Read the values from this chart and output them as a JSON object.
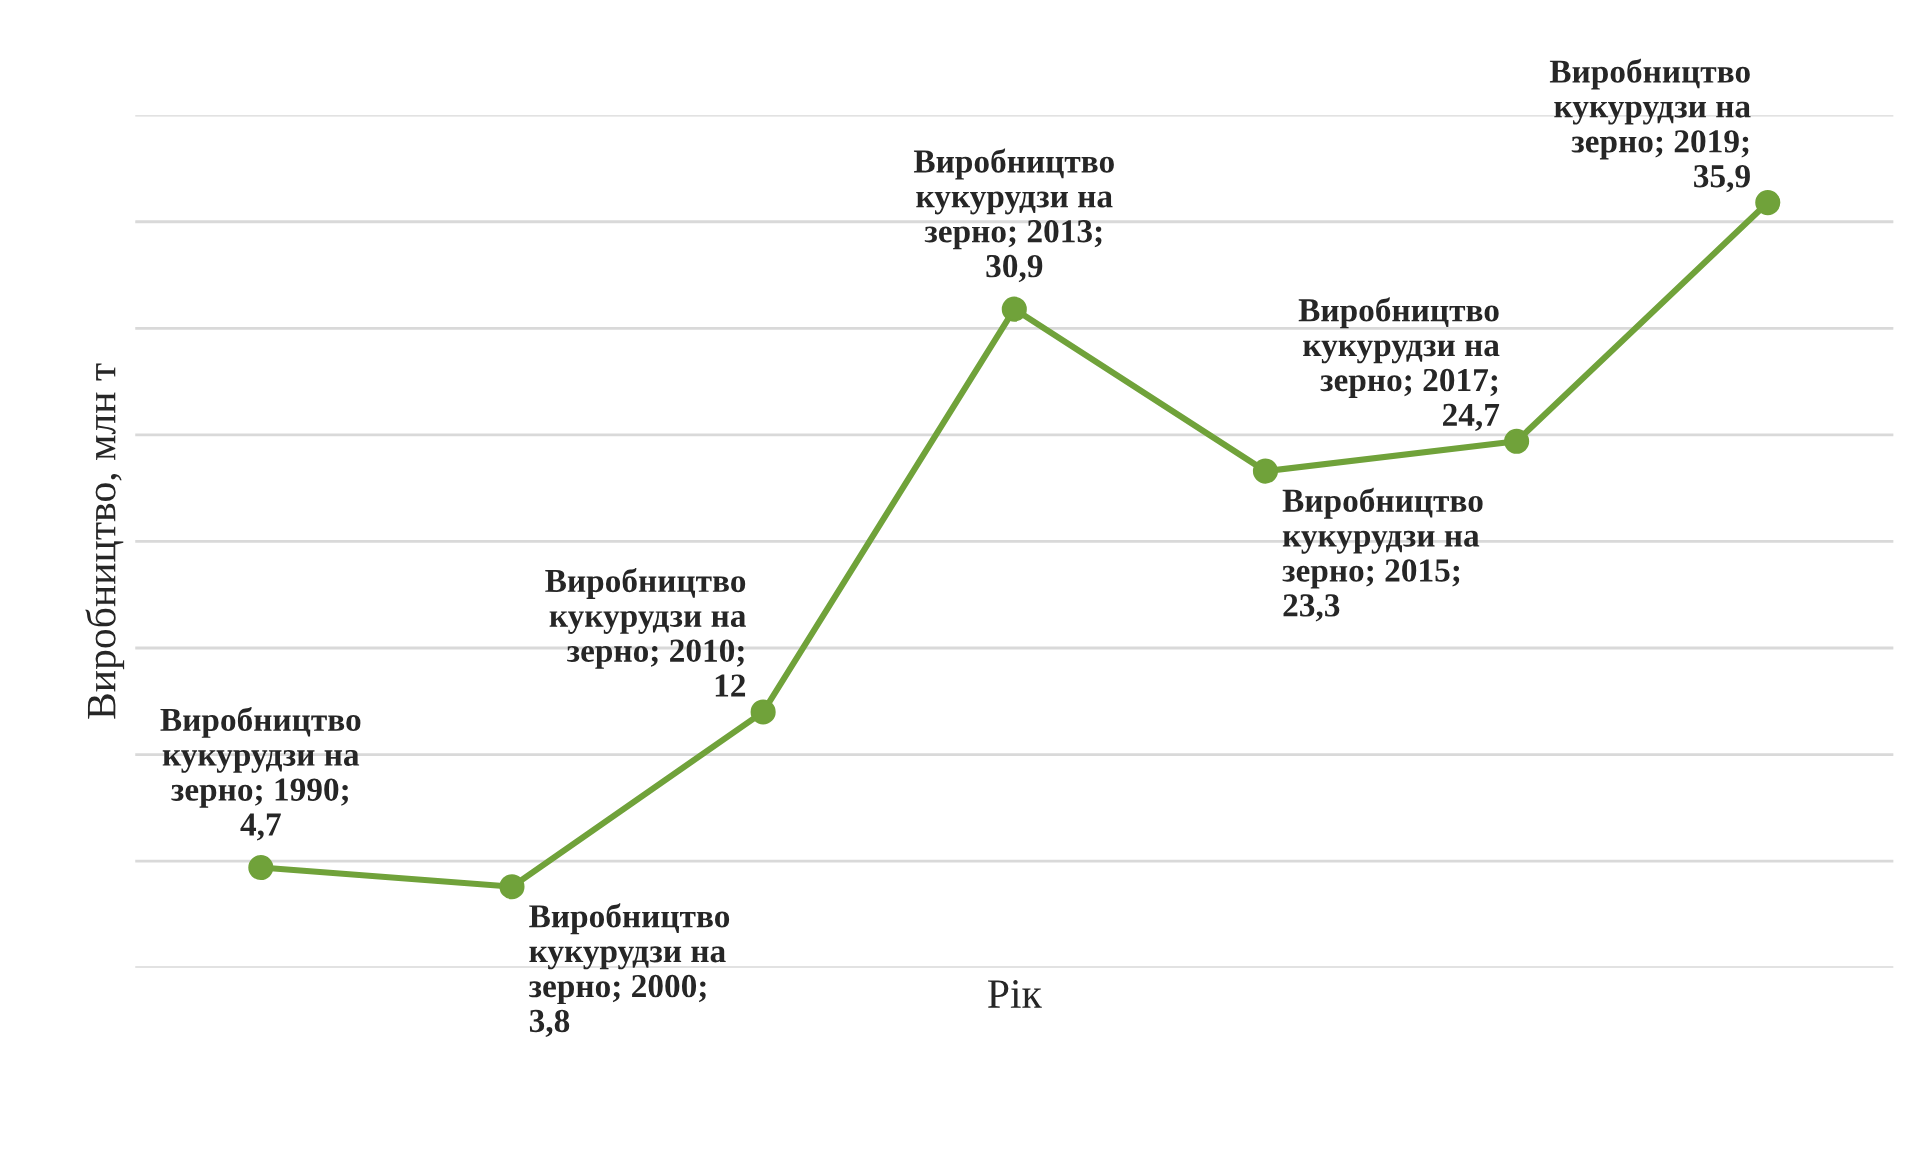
{
  "chart_data": {
    "type": "line",
    "xlabel": "Рік",
    "ylabel": "Виробництво, млн т",
    "categories": [
      null,
      null,
      null,
      null,
      null,
      null,
      null
    ],
    "series": [
      {
        "color": "#70a23a",
        "values": [
          4.7,
          3.8,
          12,
          30.9,
          23.3,
          24.7,
          35.9
        ],
        "value_labels": [
          "Виробництво кукурудзи на зерно; 1990; 4,7",
          "Виробництво кукурудзи на зерно; 2000; 3,8",
          "Виробництво кукурудзи на зерно; 2010; 12",
          "Виробництво кукурудзи на зерно; 2013; 30,9",
          "Виробництво кукурудзи на зерно; 2015; 23,3",
          "Виробництво кукурудзи на зерно; 2017; 24,7",
          "Виробництво кукурудзи на зерно; 2019; 35,9"
        ]
      }
    ],
    "ylim": [
      0,
      40
    ],
    "yticks": [
      {
        "value": 0,
        "label": null
      },
      {
        "value": 5,
        "label": null
      },
      {
        "value": 10,
        "label": null
      },
      {
        "value": 15,
        "label": null
      },
      {
        "value": 20,
        "label": null
      },
      {
        "value": 25,
        "label": null
      },
      {
        "value": 30,
        "label": null
      },
      {
        "value": 35,
        "label": null
      },
      {
        "value": 40,
        "label": null
      }
    ],
    "grid": "y",
    "marker": "circle",
    "line_style": "solid",
    "tick_labels": false
  }
}
